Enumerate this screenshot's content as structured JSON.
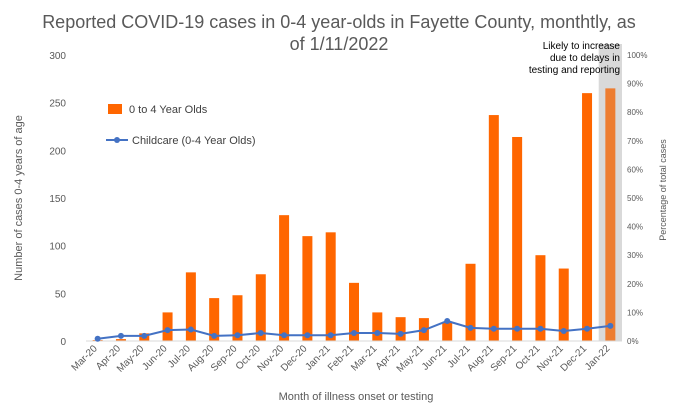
{
  "chart_data": {
    "type": "bar",
    "title_lines": [
      "Reported COVID-19 cases in 0-4 year-olds in Fayette County, monthtly, as",
      "of 1/11/2022"
    ],
    "xlabel": "Month of illness onset or testing",
    "ylabel": "Number of cases 0-4 years of age",
    "y2label": "Percentage of total cases",
    "categories": [
      "Mar-20",
      "Apr-20",
      "May-20",
      "Jun-20",
      "Jul-20",
      "Aug-20",
      "Sep-20",
      "Oct-20",
      "Nov-20",
      "Dec-20",
      "Jan-21",
      "Feb-21",
      "Mar-21",
      "Apr-21",
      "May-21",
      "Jun-21",
      "Jul-21",
      "Aug-21",
      "Sep-21",
      "Oct-21",
      "Nov-21",
      "Dec-21",
      "Jan-22"
    ],
    "ylim": [
      0,
      300
    ],
    "yticks": [
      "0",
      "50",
      "100",
      "150",
      "200",
      "250",
      "300"
    ],
    "y2lim": [
      0,
      100
    ],
    "y2ticks": [
      "0%",
      "10%",
      "20%",
      "30%",
      "40%",
      "50%",
      "60%",
      "70%",
      "80%",
      "90%",
      "100%"
    ],
    "series": [
      {
        "name": "0 to 4 Year Olds",
        "kind": "bar",
        "axis": "left",
        "color": "#FF6600",
        "values": [
          1,
          2,
          8,
          30,
          72,
          45,
          48,
          70,
          132,
          110,
          114,
          61,
          30,
          25,
          24,
          20,
          81,
          237,
          214,
          90,
          76,
          260,
          265
        ]
      },
      {
        "name": "Childcare (0-4 Year Olds)",
        "kind": "line",
        "axis": "right",
        "color": "#4472C4",
        "values": [
          0.8,
          1.8,
          1.8,
          3.8,
          4.0,
          1.8,
          2.0,
          2.8,
          2.0,
          2.0,
          2.0,
          2.8,
          2.8,
          2.5,
          3.8,
          7.0,
          4.6,
          4.3,
          4.3,
          4.3,
          3.5,
          4.3,
          5.3
        ]
      }
    ],
    "highlight": {
      "category": "Jan-22",
      "bar_color": "#ED7D31",
      "band_color": "#D9D9D9",
      "annotation": [
        "Likely to increase",
        "due to delays in",
        "testing and reporting"
      ]
    },
    "grid": false,
    "legend": "upper-left inside plot"
  }
}
